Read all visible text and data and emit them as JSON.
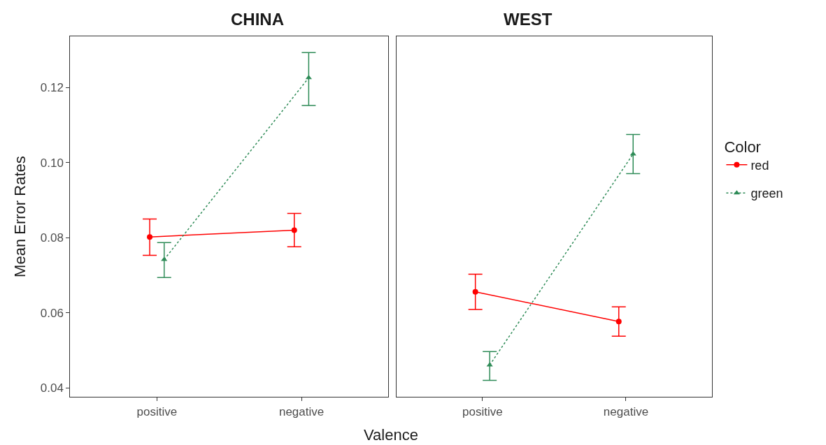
{
  "chart_data": [
    {
      "type": "line",
      "title": "CHINA",
      "xlabel": "Valence",
      "ylabel": "Mean Error Rates",
      "categories": [
        "positive",
        "negative"
      ],
      "ylim": [
        0.0376,
        0.1336
      ],
      "yticks": [
        {
          "value": 0.04,
          "label": "0.04"
        },
        {
          "value": 0.06,
          "label": "0.06"
        },
        {
          "value": 0.08,
          "label": "0.08"
        },
        {
          "value": 0.1,
          "label": "0.10"
        },
        {
          "value": 0.12,
          "label": "0.12"
        }
      ],
      "legend": "right",
      "legend_title": "Color",
      "series": [
        {
          "name": "red",
          "color": "#ff0000",
          "marker": "circle",
          "line_style": "solid",
          "values": [
            0.0802,
            0.082
          ],
          "errors": [
            [
              0.0753,
              0.085
            ],
            [
              0.0776,
              0.0865
            ]
          ]
        },
        {
          "name": "green",
          "color": "#2e8b57",
          "marker": "triangle",
          "line_style": "dotted",
          "values": [
            0.0742,
            0.1226
          ],
          "errors": [
            [
              0.0694,
              0.0787
            ],
            [
              0.1152,
              0.1293
            ]
          ]
        }
      ]
    },
    {
      "type": "line",
      "title": "WEST",
      "categories": [
        "positive",
        "negative"
      ],
      "ylim": [
        0.0376,
        0.1336
      ],
      "tick_labels": "x",
      "series": [
        {
          "color": "#ff0000",
          "marker": "circle",
          "line_style": "solid",
          "values": [
            0.0656,
            0.0577
          ],
          "errors": [
            [
              0.0609,
              0.0703
            ],
            [
              0.0538,
              0.0616
            ]
          ]
        },
        {
          "color": "#2e8b57",
          "marker": "triangle",
          "line_style": "dotted",
          "values": [
            0.0461,
            0.1023
          ],
          "errors": [
            [
              0.042,
              0.0497
            ],
            [
              0.0971,
              0.1075
            ]
          ]
        }
      ]
    }
  ]
}
